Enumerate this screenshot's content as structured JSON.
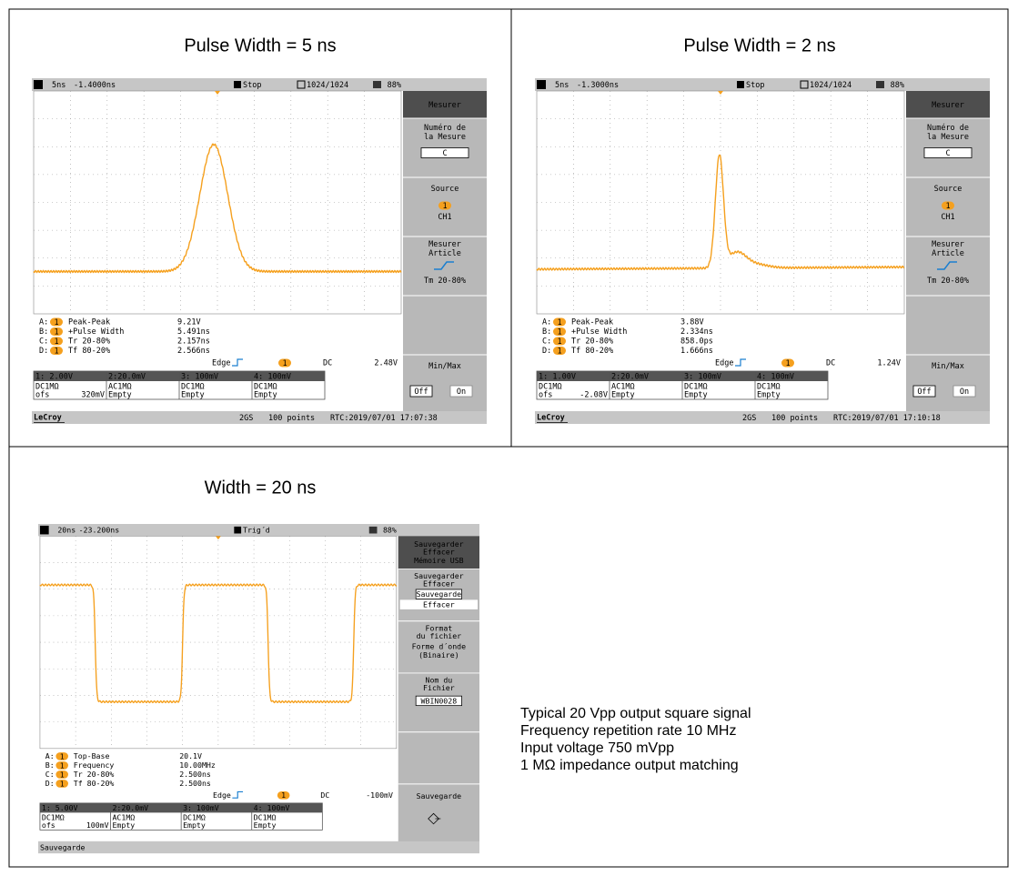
{
  "panels": [
    {
      "title": "Pulse Width = 5 ns",
      "status": {
        "icon": "M",
        "timebase": "5ns",
        "delay": "-1.4000ns",
        "mode": "Stop",
        "memory": "1024/1024",
        "battery": "88%"
      },
      "menu": [
        [
          "Mesurer"
        ],
        [
          "Numéro de",
          "la Mesure",
          "C"
        ],
        [
          "Source",
          "1",
          "CH1"
        ],
        [
          "Mesurer",
          "Article",
          "Tm 20-80%"
        ],
        [],
        [
          "Min/Max",
          "Off",
          "On"
        ]
      ],
      "measurements": [
        {
          "id": "A:",
          "channel": "1",
          "name": "Peak-Peak",
          "value": "9.21V"
        },
        {
          "id": "B:",
          "channel": "1",
          "name": "+Pulse Width",
          "value": "5.491ns"
        },
        {
          "id": "C:",
          "channel": "1",
          "name": "Tr 20-80%",
          "value": "2.157ns"
        },
        {
          "id": "D:",
          "channel": "1",
          "name": "Tf 80-20%",
          "value": "2.566ns"
        }
      ],
      "trigger": {
        "type": "Edge",
        "channel": "1",
        "coupling": "DC",
        "level": "2.48V"
      },
      "channels": [
        {
          "label": "1: 2.00V",
          "coupling": "DC1MΩ",
          "offset_label": "ofs",
          "offset": "320mV"
        },
        {
          "label": "2:20.0mV",
          "coupling": "AC1MΩ",
          "memory": "Empty"
        },
        {
          "label": "3: 100mV",
          "coupling": "DC1MΩ",
          "memory": "Empty"
        },
        {
          "label": "4: 100mV",
          "coupling": "DC1MΩ",
          "memory": "Empty"
        }
      ],
      "footer": {
        "brand": "LeCroy",
        "sample_rate": "2GS",
        "points": "100 points",
        "clock": "RTC:2019/07/01 17:07:38"
      }
    },
    {
      "title": "Pulse Width = 2 ns",
      "status": {
        "icon": "M",
        "timebase": "5ns",
        "delay": "-1.3000ns",
        "mode": "Stop",
        "memory": "1024/1024",
        "battery": "88%"
      },
      "menu": [
        [
          "Mesurer"
        ],
        [
          "Numéro de",
          "la Mesure",
          "C"
        ],
        [
          "Source",
          "1",
          "CH1"
        ],
        [
          "Mesurer",
          "Article",
          "Tm 20-80%"
        ],
        [],
        [
          "Min/Max",
          "Off",
          "On"
        ]
      ],
      "measurements": [
        {
          "id": "A:",
          "channel": "1",
          "name": "Peak-Peak",
          "value": "3.88V"
        },
        {
          "id": "B:",
          "channel": "1",
          "name": "+Pulse Width",
          "value": "2.334ns"
        },
        {
          "id": "C:",
          "channel": "1",
          "name": "Tr 20-80%",
          "value": "858.0ps"
        },
        {
          "id": "D:",
          "channel": "1",
          "name": "Tf 80-20%",
          "value": "1.666ns"
        }
      ],
      "trigger": {
        "type": "Edge",
        "channel": "1",
        "coupling": "DC",
        "level": "1.24V"
      },
      "channels": [
        {
          "label": "1: 1.00V",
          "coupling": "DC1MΩ",
          "offset_label": "ofs",
          "offset": "-2.08V"
        },
        {
          "label": "2:20.0mV",
          "coupling": "AC1MΩ",
          "memory": "Empty"
        },
        {
          "label": "3: 100mV",
          "coupling": "DC1MΩ",
          "memory": "Empty"
        },
        {
          "label": "4: 100mV",
          "coupling": "DC1MΩ",
          "memory": "Empty"
        }
      ],
      "footer": {
        "brand": "LeCroy",
        "sample_rate": "2GS",
        "points": "100 points",
        "clock": "RTC:2019/07/01 17:10:18"
      }
    },
    {
      "title": "Width = 20 ns",
      "status": {
        "icon": "M",
        "timebase": "20ns",
        "delay": "-23.200ns",
        "mode": "Trig´d",
        "battery": "88%"
      },
      "menu": [
        [
          "Sauvegarder",
          "Effacer",
          "Mémoire USB"
        ],
        [
          "Sauvegarder",
          "Effacer",
          "Sauvegarde",
          "Effacer"
        ],
        [
          "Format",
          "du fichier",
          "Forme d´onde",
          "(Binaire)"
        ],
        [
          "Nom du",
          "Fichier",
          "WBIN0028"
        ],
        [],
        [
          "Sauvegarde"
        ]
      ],
      "measurements": [
        {
          "id": "A:",
          "channel": "1",
          "name": "Top-Base",
          "value": "20.1V"
        },
        {
          "id": "B:",
          "channel": "1",
          "name": "Frequency",
          "value": "10.00MHz"
        },
        {
          "id": "C:",
          "channel": "1",
          "name": "Tr 20-80%",
          "value": "2.500ns"
        },
        {
          "id": "D:",
          "channel": "1",
          "name": "Tf 80-20%",
          "value": "2.500ns"
        }
      ],
      "trigger": {
        "type": "Edge",
        "channel": "1",
        "coupling": "DC",
        "level": "-100mV"
      },
      "channels": [
        {
          "label": "1: 5.00V",
          "coupling": "DC1MΩ",
          "offset_label": "ofs",
          "offset": "100mV"
        },
        {
          "label": "2:20.0mV",
          "coupling": "AC1MΩ",
          "memory": "Empty"
        },
        {
          "label": "3: 100mV",
          "coupling": "DC1MΩ",
          "memory": "Empty"
        },
        {
          "label": "4: 100mV",
          "coupling": "DC1MΩ",
          "memory": "Empty"
        }
      ],
      "footer": {
        "message": "Sauvegarde"
      }
    }
  ],
  "notes": [
    "Typical 20 Vpp output square signal",
    "Frequency repetition rate 10 MHz",
    "Input voltage 750 mVpp",
    "1 MΩ impedance output matching"
  ]
}
